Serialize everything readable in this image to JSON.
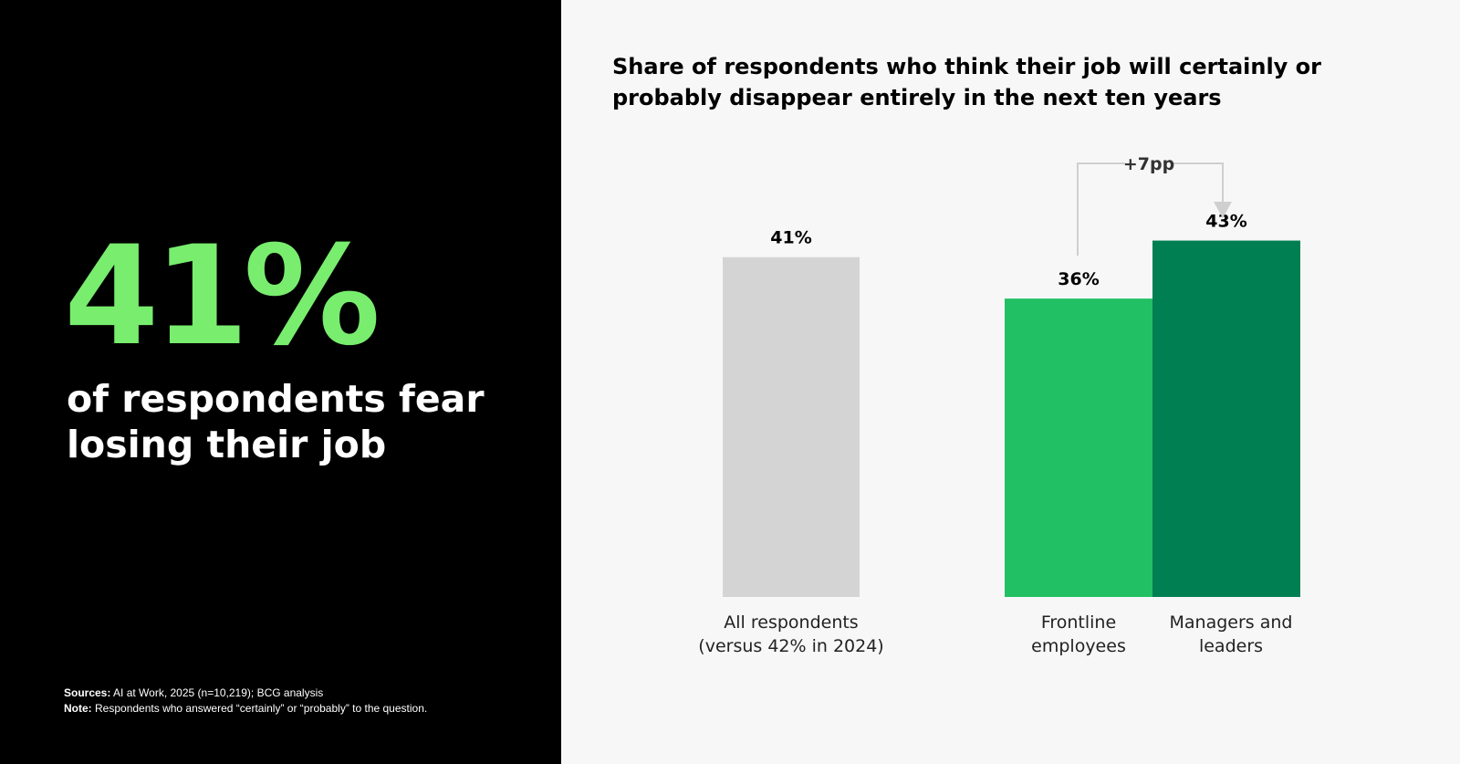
{
  "headline": {
    "stat": "41%",
    "caption": "of respondents fear losing their job"
  },
  "footnotes": {
    "sources_label": "Sources:",
    "sources_text": "AI at Work, 2025 (n=10,219); BCG analysis",
    "note_label": "Note:",
    "note_text": "Respondents who answered “certainly” or “probably” to the question."
  },
  "chart_data": {
    "type": "bar",
    "title": "Share of respondents who think their job will certainly or probably disappear entirely in the next ten years",
    "xlabel": "",
    "ylabel": "",
    "grid": false,
    "categories": [
      "All respondents\n(versus 42% in 2024)",
      "Frontline\nemployees",
      "Managers and\nleaders"
    ],
    "values": [
      41,
      36,
      43
    ],
    "value_labels": [
      "41%",
      "36%",
      "43%"
    ],
    "colors": [
      "#d4d4d4",
      "#22c064",
      "#007f52"
    ],
    "annotation": {
      "text": "+7pp",
      "from_category": "Frontline\nemployees",
      "to_category": "Managers and\nleaders"
    }
  }
}
